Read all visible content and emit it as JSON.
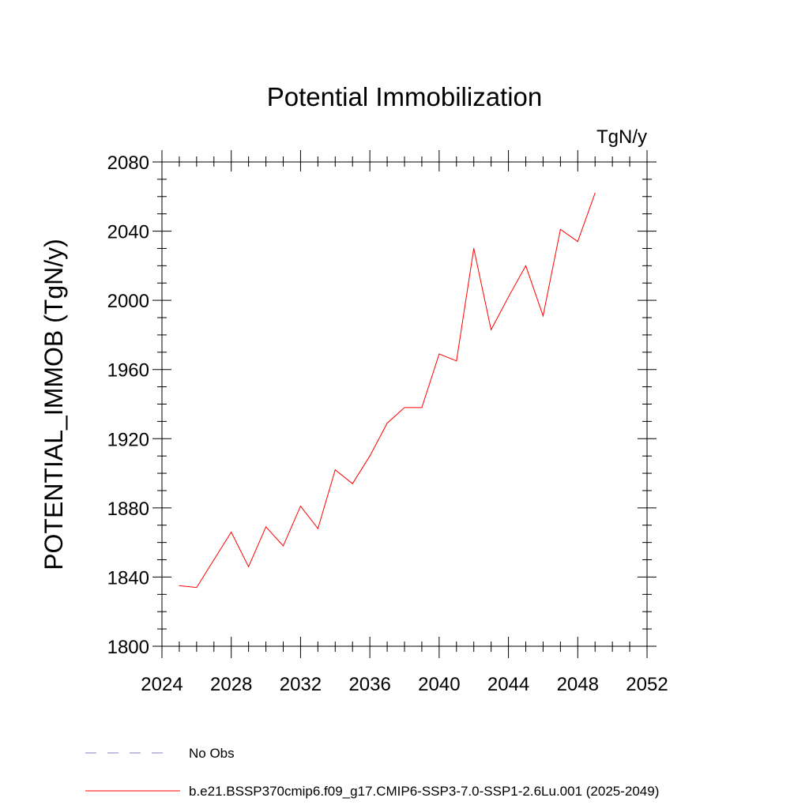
{
  "chart_data": {
    "type": "line",
    "title": "Potential Immobilization",
    "units_label": "TgN/y",
    "ylabel": "POTENTIAL_IMMOB  (TgN/y)",
    "xlabel": "",
    "xlim": [
      2024,
      2052
    ],
    "ylim": [
      1800,
      2080
    ],
    "x_ticks": [
      2024,
      2028,
      2032,
      2036,
      2040,
      2044,
      2048,
      2052
    ],
    "y_ticks": [
      1800,
      1840,
      1880,
      1920,
      1960,
      2000,
      2040,
      2080
    ],
    "grid": false,
    "legend_position": "bottom-left, below plot",
    "legend": [
      {
        "label": "No Obs",
        "style": "dashed",
        "color": "#8a7fc0"
      },
      {
        "label": "b.e21.BSSP370cmip6.f09_g17.CMIP6-SSP3-7.0-SSP1-2.6Lu.001 (2025-2049)",
        "style": "solid",
        "color": "#ff0000"
      }
    ],
    "series": [
      {
        "name": "b.e21.BSSP370cmip6.f09_g17.CMIP6-SSP3-7.0-SSP1-2.6Lu.001 (2025-2049)",
        "color": "#ff0000",
        "x": [
          2025,
          2026,
          2027,
          2028,
          2029,
          2030,
          2031,
          2032,
          2033,
          2034,
          2035,
          2036,
          2037,
          2038,
          2039,
          2040,
          2041,
          2042,
          2043,
          2044,
          2045,
          2046,
          2047,
          2048,
          2049
        ],
        "values": [
          1835,
          1834,
          1850,
          1866,
          1846,
          1869,
          1858,
          1881,
          1868,
          1902,
          1894,
          1910,
          1929,
          1938,
          1938,
          1969,
          1965,
          2030,
          1983,
          2002,
          2020,
          1991,
          2041,
          2034,
          2062
        ]
      }
    ]
  }
}
